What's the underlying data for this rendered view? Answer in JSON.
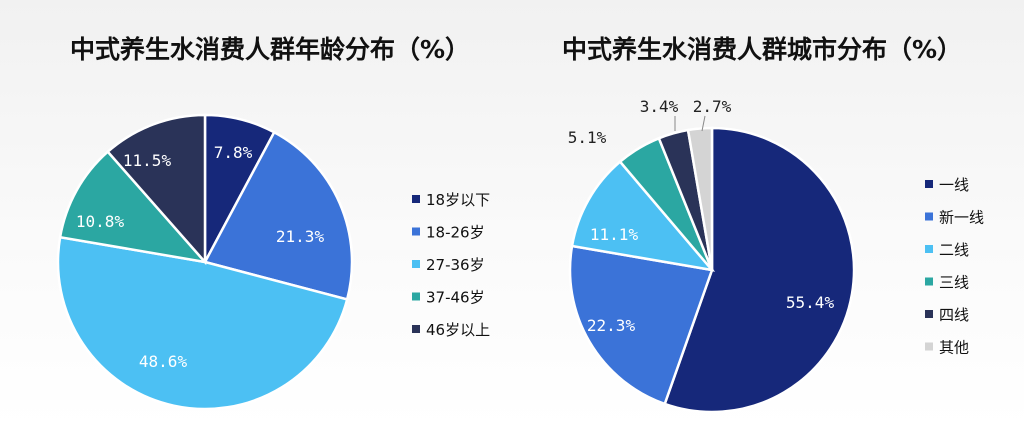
{
  "chart_data": [
    {
      "type": "pie",
      "title": "中式养生水消费人群年龄分布（%）",
      "categories": [
        "18岁以下",
        "18-26岁",
        "27-36岁",
        "37-46岁",
        "46岁以上"
      ],
      "values": [
        7.8,
        21.3,
        48.6,
        10.8,
        11.5
      ],
      "labels": [
        "7.8%",
        "21.3%",
        "48.6%",
        "10.8%",
        "11.5%"
      ],
      "colors": [
        "#16287a",
        "#3b73d8",
        "#4cc0f3",
        "#2ba7a2",
        "#2a3358"
      ],
      "start_angle_deg": 0,
      "direction": "clockwise",
      "legend_position": "right"
    },
    {
      "type": "pie",
      "title": "中式养生水消费人群城市分布（%）",
      "categories": [
        "一线",
        "新一线",
        "二线",
        "三线",
        "四线",
        "其他"
      ],
      "values": [
        55.4,
        22.3,
        11.1,
        5.1,
        3.4,
        2.7
      ],
      "labels": [
        "55.4%",
        "22.3%",
        "11.1%",
        "5.1%",
        "3.4%",
        "2.7%"
      ],
      "colors": [
        "#16287a",
        "#3b73d8",
        "#4cc0f3",
        "#2ba7a2",
        "#2a3358",
        "#d4d4d4"
      ],
      "start_angle_deg": 0,
      "direction": "clockwise",
      "legend_position": "right"
    }
  ]
}
